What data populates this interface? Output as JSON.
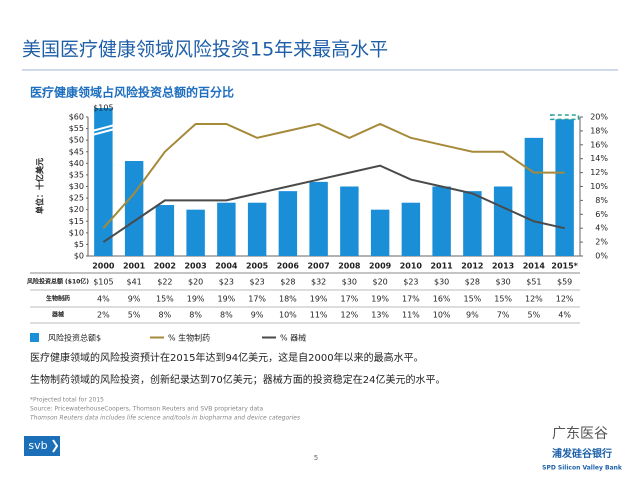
{
  "chart_data": {
    "type": "bar_line",
    "title": "美国医疗健康领域风险投资15年来最高水平",
    "subtitle": "医疗健康领域占风险投资总额的百分比",
    "y_axis_label": "单位：十亿美元",
    "categories": [
      "2000",
      "2001",
      "2002",
      "2003",
      "2004",
      "2005",
      "2006",
      "2007",
      "2008",
      "2009",
      "2010",
      "2011",
      "2012",
      "2013",
      "2014",
      "2015*"
    ],
    "series": [
      {
        "name": "风险投资总额$",
        "row_label": "风险投资总额 ($10亿)",
        "color": "#1a8fd8",
        "kind": "bar",
        "values": [
          105,
          41,
          22,
          20,
          23,
          23,
          28,
          32,
          30,
          20,
          23,
          30,
          28,
          30,
          51,
          59
        ],
        "value_labels": [
          "$105",
          "$41",
          "$22",
          "$20",
          "$23",
          "$23",
          "$28",
          "$32",
          "$30",
          "$20",
          "$23",
          "$30",
          "$28",
          "$30",
          "$51",
          "$59"
        ]
      },
      {
        "name": "% 生物制药",
        "row_label": "生物制药",
        "color": "#a58a3a",
        "kind": "line",
        "axis": "y2",
        "values": [
          4,
          9,
          15,
          19,
          19,
          17,
          18,
          19,
          17,
          19,
          17,
          16,
          15,
          15,
          12,
          12
        ],
        "value_labels": [
          "4%",
          "9%",
          "15%",
          "19%",
          "19%",
          "17%",
          "18%",
          "19%",
          "17%",
          "19%",
          "17%",
          "16%",
          "15%",
          "15%",
          "12%",
          "12%"
        ]
      },
      {
        "name": "% 器械",
        "row_label": "器械",
        "color": "#4a4a4a",
        "kind": "line",
        "axis": "y2",
        "values": [
          2,
          5,
          8,
          8,
          8,
          9,
          10,
          11,
          12,
          13,
          11,
          10,
          9,
          7,
          5,
          4
        ],
        "value_labels": [
          "2%",
          "5%",
          "8%",
          "8%",
          "8%",
          "9%",
          "10%",
          "11%",
          "12%",
          "13%",
          "11%",
          "10%",
          "9%",
          "7%",
          "5%",
          "4%"
        ]
      }
    ],
    "ylim": [
      0,
      60
    ],
    "yticks": [
      {
        "value": 0,
        "label": "$0"
      },
      {
        "value": 5,
        "label": "$5"
      },
      {
        "value": 10,
        "label": "$10"
      },
      {
        "value": 15,
        "label": "$15"
      },
      {
        "value": 20,
        "label": "$20"
      },
      {
        "value": 25,
        "label": "$25"
      },
      {
        "value": 30,
        "label": "$30"
      },
      {
        "value": 35,
        "label": "$35"
      },
      {
        "value": 40,
        "label": "$40"
      },
      {
        "value": 45,
        "label": "$45"
      },
      {
        "value": 50,
        "label": "$50"
      },
      {
        "value": 55,
        "label": "$55"
      },
      {
        "value": 60,
        "label": "$60"
      }
    ],
    "y2lim": [
      0,
      20
    ],
    "y2ticks": [
      {
        "value": 0,
        "label": "0%"
      },
      {
        "value": 2,
        "label": "2%"
      },
      {
        "value": 4,
        "label": "4%"
      },
      {
        "value": 6,
        "label": "6%"
      },
      {
        "value": 8,
        "label": "8%"
      },
      {
        "value": 10,
        "label": "10%"
      },
      {
        "value": 12,
        "label": "12%"
      },
      {
        "value": 14,
        "label": "14%"
      },
      {
        "value": 16,
        "label": "16%"
      },
      {
        "value": 18,
        "label": "18%"
      },
      {
        "value": 20,
        "label": "20%"
      }
    ]
  },
  "notes": [
    "医疗健康领域的风险投资预计在2015年达到94亿美元，这是自2000年以来的最高水平。",
    "生物制药领域的风险投资，创新纪录达到70亿美元；器械方面的投资稳定在24亿美元的水平。"
  ],
  "footnotes": [
    "*Projected total for 2015",
    "Source: PricewaterhouseCoopers, Thomson Reuters and SVB proprietary data",
    "Thomson Reuters data includes life science and/tools in biopharma and device categories"
  ],
  "footer": {
    "logo": "svb",
    "page": "5",
    "watermark": "广东医谷",
    "bank_cn": "浦发硅谷银行",
    "bank_en": "SPD Silicon Valley Bank"
  }
}
